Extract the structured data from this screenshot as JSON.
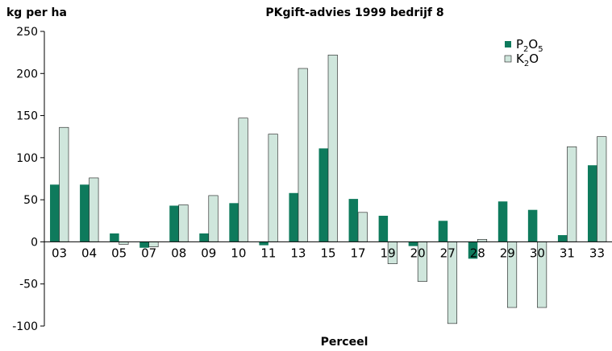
{
  "chart_data": {
    "type": "bar",
    "title": "PKgift-advies 1999 bedrijf 8",
    "ylabel": "kg per ha",
    "xlabel": "Perceel",
    "ylim": [
      -100,
      250
    ],
    "yticks": [
      250,
      200,
      150,
      100,
      50,
      0,
      -50,
      -100
    ],
    "legend_position": "top-right",
    "categories": [
      "03",
      "04",
      "05",
      "07",
      "08",
      "09",
      "10",
      "11",
      "13",
      "15",
      "17",
      "19",
      "20",
      "27",
      "28",
      "29",
      "30",
      "31",
      "33"
    ],
    "series": [
      {
        "name": "P2O5",
        "label_main": "P",
        "label_sub1": "2",
        "label_mid": "O",
        "label_sub2": "5",
        "color": "#0e7a5c",
        "values": [
          68,
          68,
          10,
          -7,
          43,
          10,
          46,
          -4,
          58,
          111,
          51,
          31,
          -5,
          25,
          -20,
          48,
          38,
          8,
          91
        ]
      },
      {
        "name": "K2O",
        "label_main": "K",
        "label_sub1": "2",
        "label_mid": "O",
        "label_sub2": "",
        "color": "#cfe6dc",
        "values": [
          136,
          76,
          -3,
          -6,
          44,
          55,
          147,
          128,
          206,
          222,
          35,
          -26,
          -47,
          -97,
          3,
          -78,
          -78,
          113,
          125
        ]
      }
    ]
  }
}
